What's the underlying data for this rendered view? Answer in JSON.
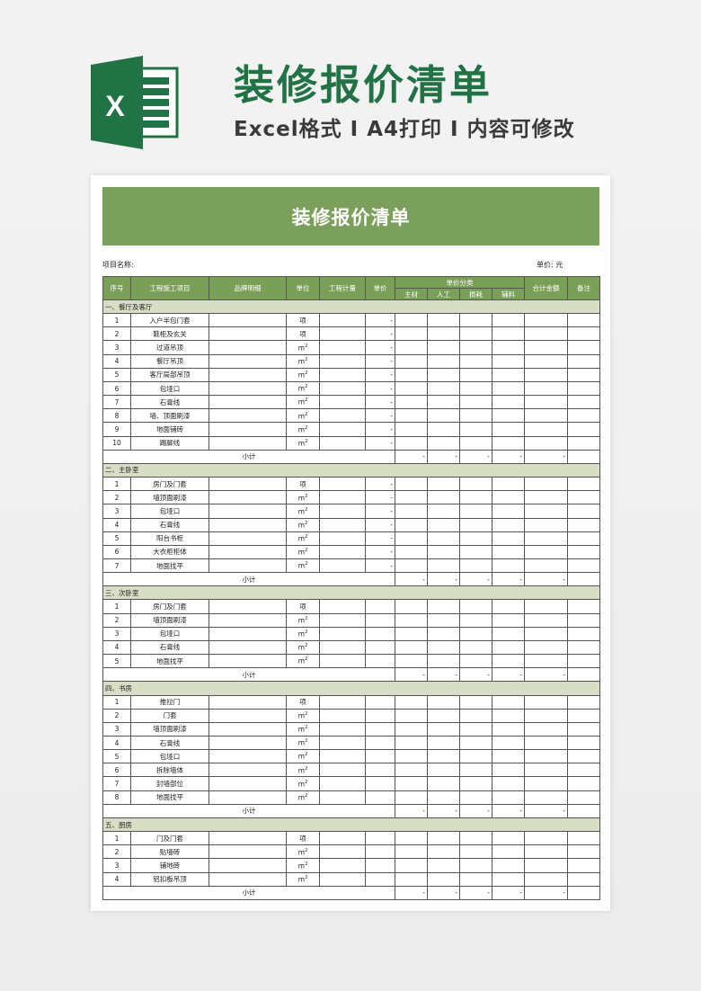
{
  "hero": {
    "title": "装修报价清单",
    "subtitle": "Excel格式 I A4打印 I 内容可修改",
    "logo_letter": "X"
  },
  "colors": {
    "accent": "#217346",
    "banner": "#7ba05b",
    "header": "#7a9f56",
    "section": "#d8dec6"
  },
  "sheet": {
    "title": "装修报价清单",
    "project_label": "项目名称:",
    "unit_label": "单价: 元",
    "headers": {
      "no": "序号",
      "item": "工程施工项目",
      "brand": "品牌明细",
      "unit": "单位",
      "qty": "工程计量",
      "price": "单价",
      "category": "单价分类",
      "main": "主材",
      "labor": "人工",
      "loss": "损耗",
      "aux": "辅料",
      "total": "合计金额",
      "remark": "备注"
    },
    "subtotal_label": "小计",
    "dash": "-",
    "sections": [
      {
        "name": "一、餐厅及客厅",
        "show_price": true,
        "items": [
          [
            "1",
            "入户半包门套",
            "项"
          ],
          [
            "2",
            "鞋柜及玄关",
            "项"
          ],
          [
            "3",
            "过道吊顶",
            "m2"
          ],
          [
            "4",
            "餐厅吊顶",
            "m2"
          ],
          [
            "5",
            "客厅局部吊顶",
            "m2"
          ],
          [
            "6",
            "包垭口",
            "m2"
          ],
          [
            "7",
            "石膏线",
            "m2"
          ],
          [
            "8",
            "墙、顶面刷漆",
            "m2"
          ],
          [
            "9",
            "地面铺砖",
            "m2"
          ],
          [
            "10",
            "踢脚线",
            "m2"
          ]
        ]
      },
      {
        "name": "二、主卧室",
        "show_price": true,
        "items": [
          [
            "1",
            "房门及门套",
            "项"
          ],
          [
            "2",
            "墙顶面刷漆",
            "m2"
          ],
          [
            "3",
            "包垭口",
            "m2"
          ],
          [
            "4",
            "石膏线",
            "m2"
          ],
          [
            "5",
            "阳台书柜",
            "m2"
          ],
          [
            "6",
            "大衣柜柜体",
            "m2"
          ],
          [
            "7",
            "地面找平",
            "m2"
          ]
        ]
      },
      {
        "name": "三、次卧室",
        "show_price": false,
        "items": [
          [
            "1",
            "房门及门套",
            "项"
          ],
          [
            "2",
            "墙顶面刷漆",
            "m2"
          ],
          [
            "3",
            "包垭口",
            "m2"
          ],
          [
            "4",
            "石膏线",
            "m2"
          ],
          [
            "5",
            "地面找平",
            "m2"
          ]
        ]
      },
      {
        "name": "四、书房",
        "show_price": false,
        "items": [
          [
            "1",
            "推拉门",
            "项"
          ],
          [
            "2",
            "门套",
            "m2"
          ],
          [
            "3",
            "墙顶面刷漆",
            "m2"
          ],
          [
            "4",
            "石膏线",
            "m2"
          ],
          [
            "5",
            "包垭口",
            "m2"
          ],
          [
            "6",
            "拆除墙体",
            "m2"
          ],
          [
            "7",
            "封墙部位",
            "m2"
          ],
          [
            "8",
            "地面找平",
            "m2"
          ]
        ]
      },
      {
        "name": "五、厨房",
        "show_price": false,
        "items": [
          [
            "1",
            "门及门套",
            "项"
          ],
          [
            "2",
            "贴墙砖",
            "m2"
          ],
          [
            "3",
            "铺地砖",
            "m2"
          ],
          [
            "4",
            "铝扣板吊顶",
            "m2"
          ]
        ]
      }
    ]
  }
}
